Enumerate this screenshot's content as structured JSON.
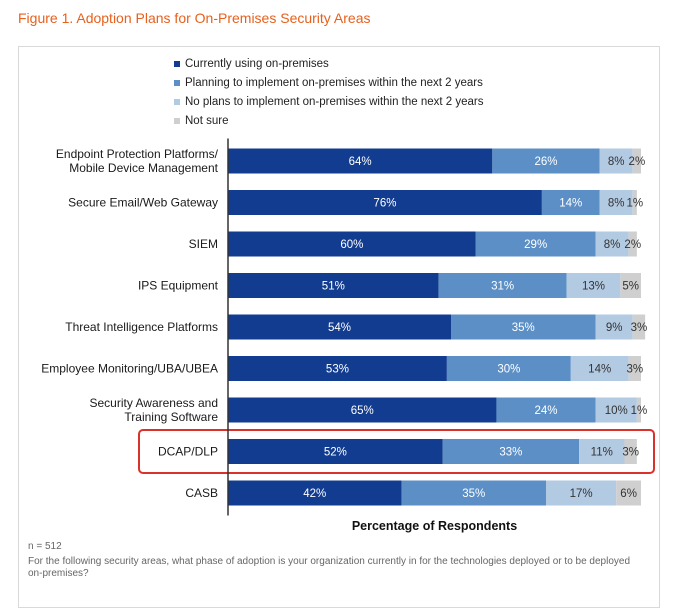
{
  "figure_title": "Figure 1. Adoption Plans for On-Premises Security Areas",
  "n_text": "n = 512",
  "footnote": "For the following security areas, what phase of adoption is your organization currently in for the technologies deployed or to be deployed on-premises?",
  "colors": {
    "currently": "#123c8f",
    "planning": "#5b8fc6",
    "no_plans": "#b3cae3",
    "not_sure": "#cfcfcf",
    "highlight": "#d9322b"
  },
  "chart_data": {
    "type": "bar",
    "orientation": "horizontal-stacked-100",
    "xlabel": "Percentage of Respondents",
    "categories": [
      [
        "Endpoint Protection Platforms/",
        "Mobile Device Management"
      ],
      [
        "Secure Email/Web Gateway"
      ],
      [
        "SIEM"
      ],
      [
        "IPS Equipment"
      ],
      [
        "Threat Intelligence Platforms"
      ],
      [
        "Employee Monitoring/UBA/UBEA"
      ],
      [
        "Security Awareness and",
        "Training Software"
      ],
      [
        "DCAP/DLP"
      ],
      [
        "CASB"
      ]
    ],
    "series": [
      {
        "name": "Currently using on-premises",
        "values": [
          64,
          76,
          60,
          51,
          54,
          53,
          65,
          52,
          42
        ]
      },
      {
        "name": "Planning to implement on-premises within the next 2 years",
        "values": [
          26,
          14,
          29,
          31,
          35,
          30,
          24,
          33,
          35
        ]
      },
      {
        "name": "No plans to implement on-premises within the next 2 years",
        "values": [
          8,
          8,
          8,
          13,
          9,
          14,
          10,
          11,
          17
        ]
      },
      {
        "name": "Not sure",
        "values": [
          2,
          1,
          2,
          5,
          3,
          3,
          1,
          3,
          6
        ]
      }
    ],
    "legend_position": "top",
    "highlighted_category": "DCAP/DLP",
    "xlim": [
      0,
      100
    ],
    "grid": false
  }
}
